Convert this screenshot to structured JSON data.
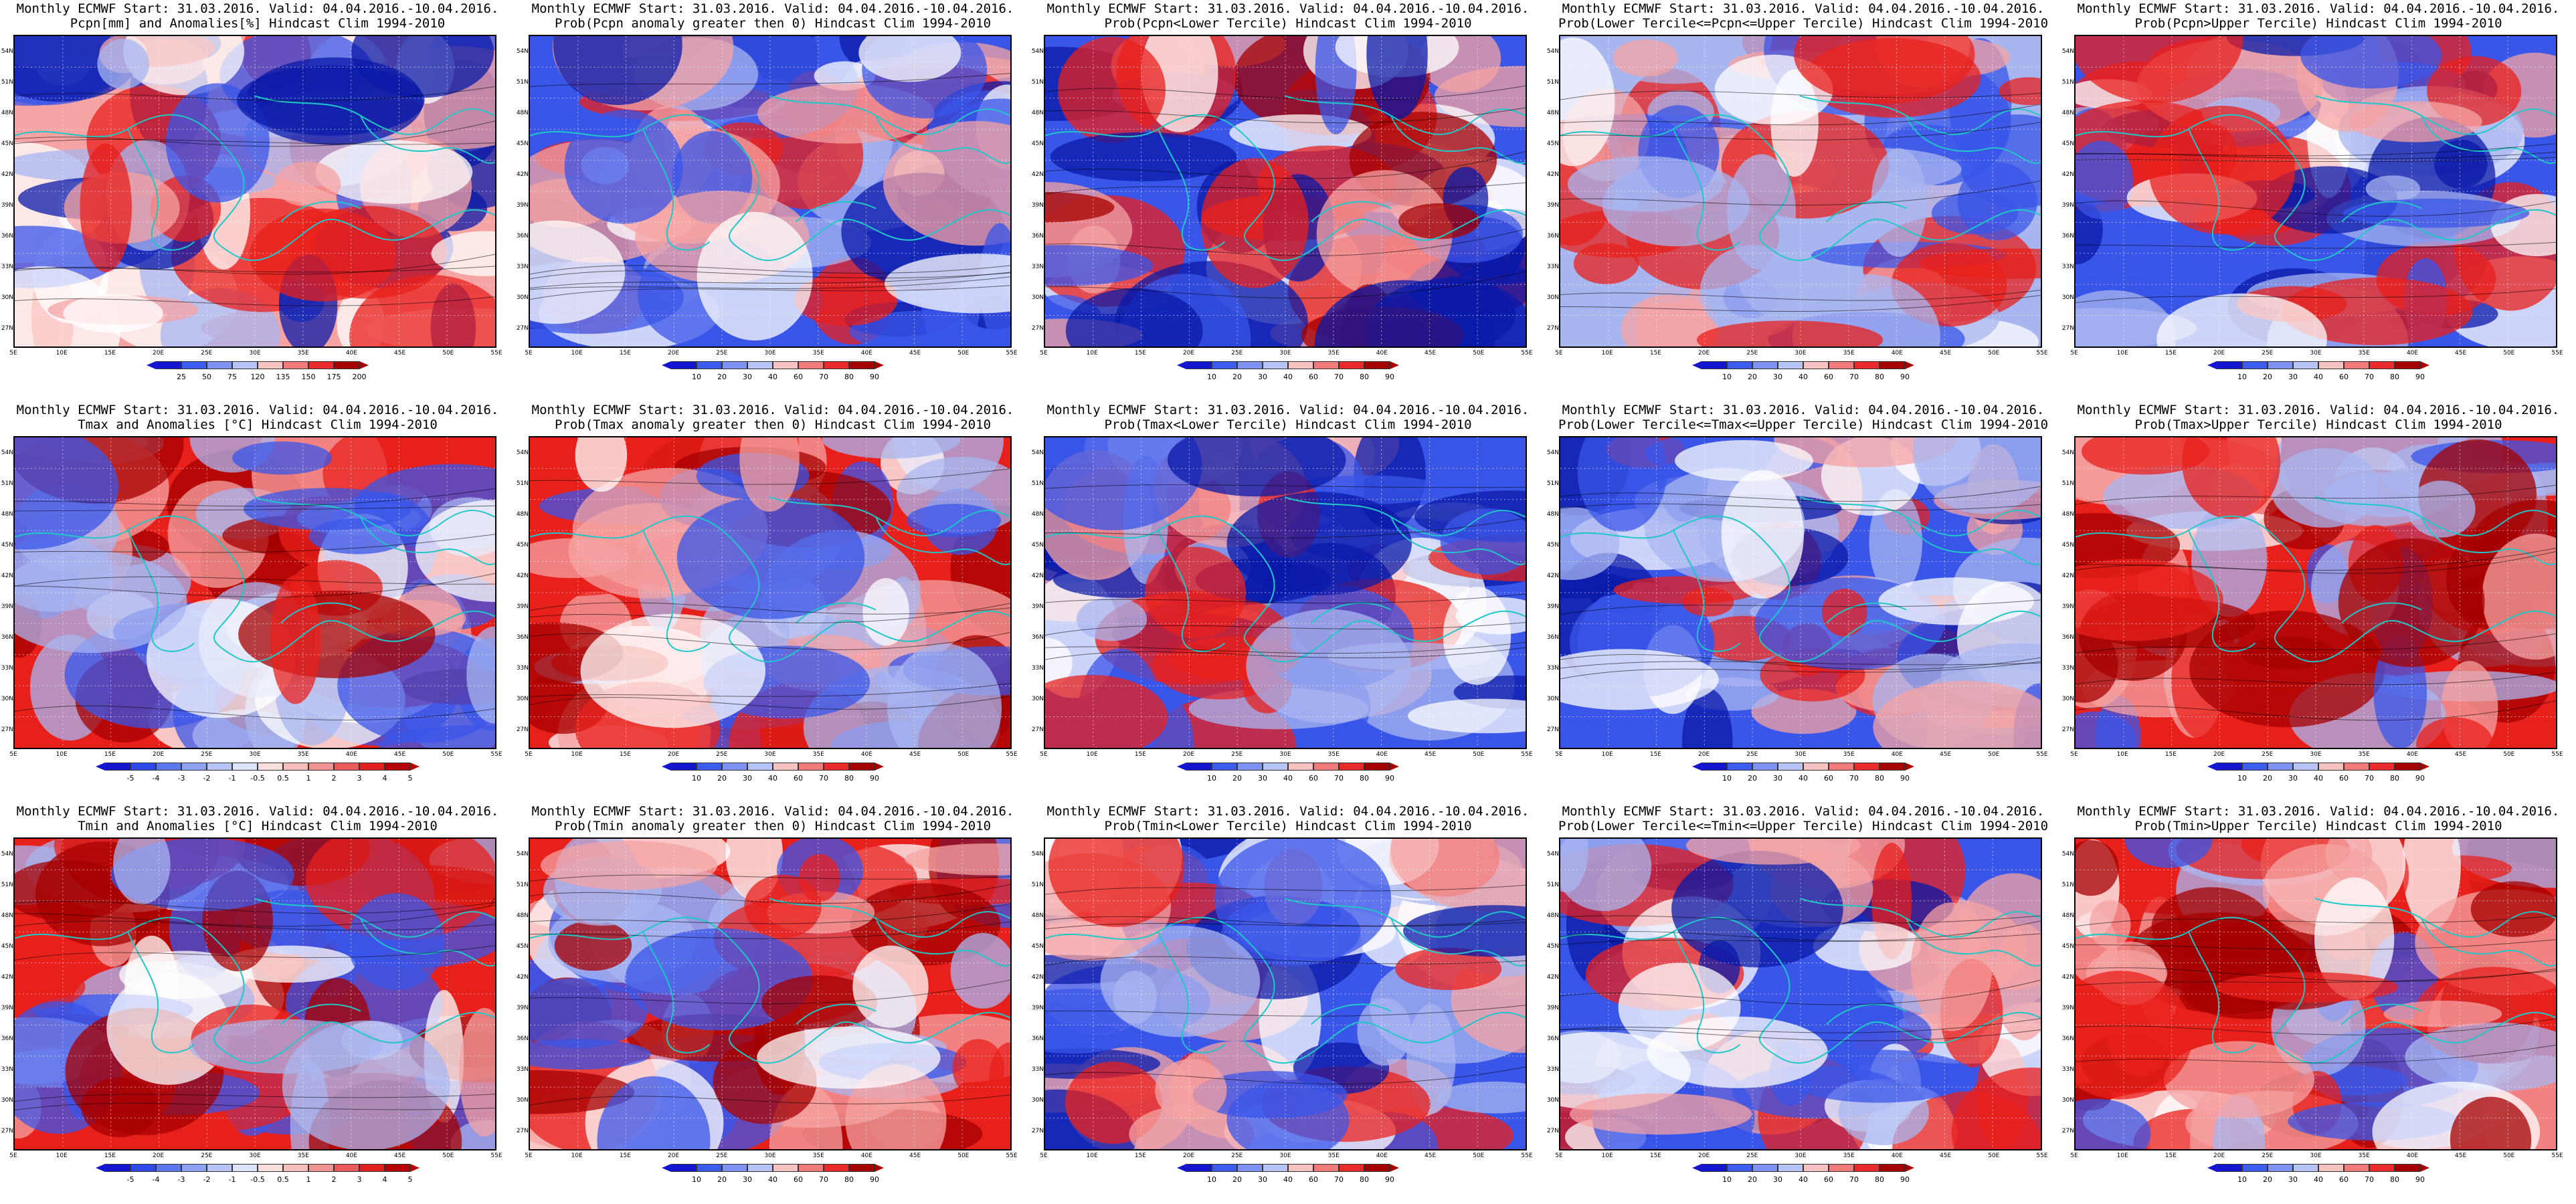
{
  "panels": [
    {
      "title1": "Monthly ECMWF Start: 31.03.2016. Valid: 04.04.2016.-10.04.2016.",
      "title2": "Pcpn[mm] and Anomalies[%] Hindcast Clim 1994-2010",
      "scheme": "anom",
      "legend": [
        "25",
        "50",
        "75",
        "120",
        "135",
        "150",
        "175",
        "200"
      ]
    },
    {
      "title1": "Monthly ECMWF Start: 31.03.2016. Valid: 04.04.2016.-10.04.2016.",
      "title2": "Prob(Pcpn anomaly greater then 0) Hindcast Clim 1994-2010",
      "scheme": "blue",
      "legend": [
        "10",
        "20",
        "30",
        "40",
        "60",
        "70",
        "80",
        "90"
      ]
    },
    {
      "title1": "Monthly ECMWF Start: 31.03.2016. Valid: 04.04.2016.-10.04.2016.",
      "title2": "Prob(Pcpn<Lower Tercile) Hindcast Clim 1994-2010",
      "scheme": "mixed",
      "legend": [
        "10",
        "20",
        "30",
        "40",
        "60",
        "70",
        "80",
        "90"
      ]
    },
    {
      "title1": "Monthly ECMWF Start: 31.03.2016. Valid: 04.04.2016.-10.04.2016.",
      "title2": "Prob(Lower Tercile<=Pcpn<=Upper Tercile) Hindcast Clim 1994-2010",
      "scheme": "light",
      "legend": [
        "10",
        "20",
        "30",
        "40",
        "60",
        "70",
        "80",
        "90"
      ]
    },
    {
      "title1": "Monthly ECMWF Start: 31.03.2016. Valid: 04.04.2016.-10.04.2016.",
      "title2": "Prob(Pcpn>Upper Tercile) Hindcast Clim 1994-2010",
      "scheme": "blue",
      "legend": [
        "10",
        "20",
        "30",
        "40",
        "60",
        "70",
        "80",
        "90"
      ]
    },
    {
      "title1": "Monthly ECMWF Start: 31.03.2016. Valid: 04.04.2016.-10.04.2016.",
      "title2": "Tmax and Anomalies [°C] Hindcast Clim 1994-2010",
      "scheme": "warmanom",
      "legend": [
        "-5",
        "-4",
        "-3",
        "-2",
        "-1",
        "-0.5",
        "0.5",
        "1",
        "2",
        "3",
        "4",
        "5"
      ]
    },
    {
      "title1": "Monthly ECMWF Start: 31.03.2016. Valid: 04.04.2016.-10.04.2016.",
      "title2": "Prob(Tmax anomaly greater then 0) Hindcast Clim 1994-2010",
      "scheme": "red",
      "legend": [
        "10",
        "20",
        "30",
        "40",
        "60",
        "70",
        "80",
        "90"
      ]
    },
    {
      "title1": "Monthly ECMWF Start: 31.03.2016. Valid: 04.04.2016.-10.04.2016.",
      "title2": "Prob(Tmax<Lower Tercile) Hindcast Clim 1994-2010",
      "scheme": "deepblue",
      "legend": [
        "10",
        "20",
        "30",
        "40",
        "60",
        "70",
        "80",
        "90"
      ]
    },
    {
      "title1": "Monthly ECMWF Start: 31.03.2016. Valid: 04.04.2016.-10.04.2016.",
      "title2": "Prob(Lower Tercile<=Tmax<=Upper Tercile) Hindcast Clim 1994-2010",
      "scheme": "deepblue",
      "legend": [
        "10",
        "20",
        "30",
        "40",
        "60",
        "70",
        "80",
        "90"
      ]
    },
    {
      "title1": "Monthly ECMWF Start: 31.03.2016. Valid: 04.04.2016.-10.04.2016.",
      "title2": "Prob(Tmax>Upper Tercile) Hindcast Clim 1994-2010",
      "scheme": "red",
      "legend": [
        "10",
        "20",
        "30",
        "40",
        "60",
        "70",
        "80",
        "90"
      ]
    },
    {
      "title1": "Monthly ECMWF Start: 31.03.2016. Valid: 04.04.2016.-10.04.2016.",
      "title2": "Tmin and Anomalies [°C] Hindcast Clim 1994-2010",
      "scheme": "warmanom",
      "legend": [
        "-5",
        "-4",
        "-3",
        "-2",
        "-1",
        "-0.5",
        "0.5",
        "1",
        "2",
        "3",
        "4",
        "5"
      ]
    },
    {
      "title1": "Monthly ECMWF Start: 31.03.2016. Valid: 04.04.2016.-10.04.2016.",
      "title2": "Prob(Tmin anomaly greater then 0) Hindcast Clim 1994-2010",
      "scheme": "red",
      "legend": [
        "10",
        "20",
        "30",
        "40",
        "60",
        "70",
        "80",
        "90"
      ]
    },
    {
      "title1": "Monthly ECMWF Start: 31.03.2016. Valid: 04.04.2016.-10.04.2016.",
      "title2": "Prob(Tmin<Lower Tercile) Hindcast Clim 1994-2010",
      "scheme": "deepblue",
      "legend": [
        "10",
        "20",
        "30",
        "40",
        "60",
        "70",
        "80",
        "90"
      ]
    },
    {
      "title1": "Monthly ECMWF Start: 31.03.2016. Valid: 04.04.2016.-10.04.2016.",
      "title2": "Prob(Lower Tercile<=Tmin<=Upper Tercile) Hindcast Clim 1994-2010",
      "scheme": "deepblue",
      "legend": [
        "10",
        "20",
        "30",
        "40",
        "60",
        "70",
        "80",
        "90"
      ]
    },
    {
      "title1": "Monthly ECMWF Start: 31.03.2016. Valid: 04.04.2016.-10.04.2016.",
      "title2": "Prob(Tmin>Upper Tercile) Hindcast Clim 1994-2010",
      "scheme": "red",
      "legend": [
        "10",
        "20",
        "30",
        "40",
        "60",
        "70",
        "80",
        "90"
      ]
    }
  ],
  "lat_labels": [
    "54N",
    "51N",
    "48N",
    "45N",
    "42N",
    "39N",
    "36N",
    "33N",
    "30N",
    "27N"
  ],
  "lon_labels": [
    "5E",
    "10E",
    "15E",
    "20E",
    "25E",
    "30E",
    "35E",
    "40E",
    "45E",
    "50E",
    "55E"
  ],
  "colors": {
    "dark_red": "#a50000",
    "red": "#e8201c",
    "pink": "#f5a3a3",
    "white": "#ffffff",
    "light_blue": "#a8b6f0",
    "blue": "#3a56e8",
    "dark_blue": "#0a1aa8",
    "coast": "#1fc7c7"
  }
}
